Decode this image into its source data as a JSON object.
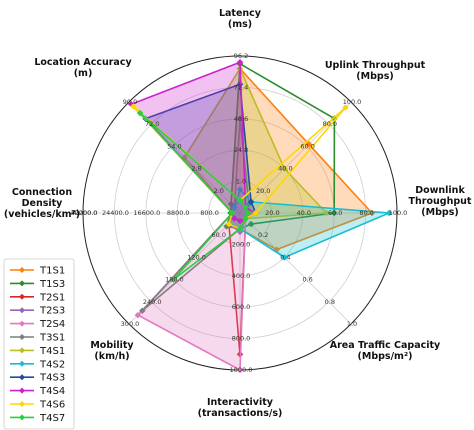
{
  "chart_data": {
    "type": "radar",
    "axes": [
      {
        "label": "Latency\n(ms)",
        "ticks": [
          "1.0",
          "24.8",
          "48.6",
          "72.4",
          "96.2"
        ],
        "range": [
          120,
          1
        ]
      },
      {
        "label": "Uplink Throughput\n(Mbps)",
        "ticks": [
          "20.0",
          "40.0",
          "60.0",
          "80.0",
          "100.0"
        ],
        "range": [
          0,
          100
        ]
      },
      {
        "label": "Downlink\nThroughput\n(Mbps)",
        "ticks": [
          "20.0",
          "40.0",
          "60.0",
          "80.0",
          "100.0"
        ],
        "range": [
          0,
          100
        ]
      },
      {
        "label": "Area Traffic Capacity\n(Mbps/m²)",
        "ticks": [
          "0.2",
          "0.4",
          "0.6",
          "0.8",
          "1.0"
        ],
        "range": [
          0,
          1
        ]
      },
      {
        "label": "Interactivity\n(transactions/s)",
        "ticks": [
          "200.0",
          "400.0",
          "600.0",
          "800.0",
          "1000.0"
        ],
        "range": [
          0,
          1000
        ]
      },
      {
        "label": "Mobility\n(km/h)",
        "ticks": [
          "60.0",
          "120.0",
          "180.0",
          "240.0",
          "300.0"
        ],
        "range": [
          0,
          300
        ]
      },
      {
        "label": "Connection\nDensity\n(vehicles/km²)",
        "ticks": [
          "800.0",
          "8800.0",
          "16600.0",
          "24400.0",
          "32200.0",
          "40000.0"
        ],
        "range": [
          0,
          40000
        ]
      },
      {
        "label": "Location Accuracy\n(m)",
        "ticks": [
          "2.0",
          "2.8",
          "54.0",
          "72.0",
          "90.0"
        ],
        "range": [
          100,
          0
        ]
      }
    ],
    "legend_position": "left",
    "series": [
      {
        "name": "T1S1",
        "color": "#ff7f0e",
        "fill": true,
        "values": [
          0.92,
          0.62,
          0.84,
          0.33,
          0.1,
          0.12,
          0.05,
          0.08
        ]
      },
      {
        "name": "T1S3",
        "color": "#2e8b2e",
        "fill": false,
        "values": [
          0.95,
          0.85,
          0.6,
          0.1,
          0.1,
          0.12,
          0.06,
          0.08
        ]
      },
      {
        "name": "T2S1",
        "color": "#d62728",
        "fill": false,
        "values": [
          0.08,
          0.05,
          0.05,
          0.05,
          0.9,
          0.1,
          0.05,
          0.05
        ]
      },
      {
        "name": "T2S3",
        "color": "#9467bd",
        "fill": false,
        "values": [
          0.08,
          0.05,
          0.05,
          0.05,
          0.12,
          0.1,
          0.05,
          0.05
        ]
      },
      {
        "name": "T2S4",
        "color": "#e377c2",
        "fill": true,
        "values": [
          0.08,
          0.05,
          0.05,
          0.05,
          1.0,
          0.92,
          0.05,
          0.05
        ]
      },
      {
        "name": "T3S1",
        "color": "#7f7f7f",
        "fill": false,
        "values": [
          0.6,
          0.08,
          0.05,
          0.05,
          0.1,
          0.88,
          0.05,
          0.05
        ]
      },
      {
        "name": "T4S1",
        "color": "#bcbd22",
        "fill": true,
        "values": [
          0.92,
          0.4,
          0.55,
          0.05,
          0.1,
          0.1,
          0.05,
          0.5
        ]
      },
      {
        "name": "T4S2",
        "color": "#17becf",
        "fill": true,
        "values": [
          0.15,
          0.1,
          0.95,
          0.4,
          0.1,
          0.1,
          0.05,
          0.05
        ]
      },
      {
        "name": "T4S3",
        "color": "#1f4fa0",
        "fill": true,
        "values": [
          0.82,
          0.1,
          0.1,
          0.05,
          0.1,
          0.1,
          0.05,
          0.85
        ]
      },
      {
        "name": "T4S4",
        "color": "#cc22cc",
        "fill": true,
        "values": [
          0.96,
          0.05,
          0.1,
          0.05,
          0.05,
          0.05,
          0.05,
          0.98
        ]
      },
      {
        "name": "T4S6",
        "color": "#ffd700",
        "fill": false,
        "values": [
          0.08,
          0.95,
          0.1,
          0.05,
          0.1,
          0.1,
          0.05,
          0.96
        ]
      },
      {
        "name": "T4S7",
        "color": "#2ecc40",
        "fill": false,
        "values": [
          0.08,
          0.05,
          0.05,
          0.05,
          0.1,
          0.6,
          0.05,
          0.9
        ]
      }
    ]
  }
}
